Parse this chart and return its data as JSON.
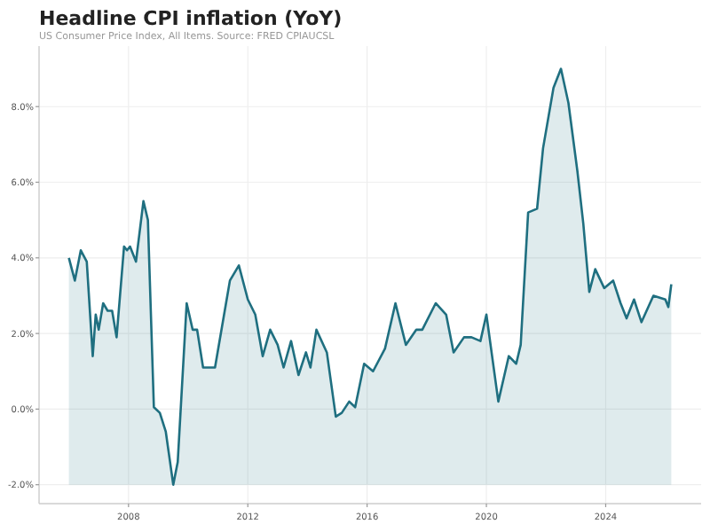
{
  "chart_data": {
    "type": "line",
    "title": "Headline CPI inflation (YoY)",
    "subtitle": "US Consumer Price Index, All Items. Source: FRED CPIAUCSL",
    "x": [
      2006.0,
      2006.2,
      2006.4,
      2006.6,
      2006.8,
      2006.9,
      2007.0,
      2007.15,
      2007.3,
      2007.45,
      2007.6,
      2007.85,
      2007.95,
      2008.05,
      2008.25,
      2008.5,
      2008.65,
      2008.85,
      2009.05,
      2009.25,
      2009.5,
      2009.65,
      2009.95,
      2010.15,
      2010.3,
      2010.5,
      2010.75,
      2010.9,
      2011.4,
      2011.7,
      2012.0,
      2012.25,
      2012.5,
      2012.75,
      2013.0,
      2013.2,
      2013.45,
      2013.7,
      2013.95,
      2014.1,
      2014.3,
      2014.65,
      2014.95,
      2015.15,
      2015.4,
      2015.6,
      2015.9,
      2016.2,
      2016.6,
      2016.95,
      2017.3,
      2017.65,
      2017.85,
      2018.3,
      2018.65,
      2018.9,
      2019.25,
      2019.5,
      2019.8,
      2020.0,
      2020.4,
      2020.75,
      2021.0,
      2021.15,
      2021.4,
      2021.7,
      2021.9,
      2022.25,
      2022.5,
      2022.75,
      2023.05,
      2023.25,
      2023.45,
      2023.65,
      2023.95,
      2024.25,
      2024.5,
      2024.7,
      2024.95,
      2025.2,
      2025.6,
      2026.0,
      2026.1,
      2026.2
    ],
    "series": [
      {
        "color": "#1f6f80",
        "values": [
          4.0,
          3.4,
          4.2,
          3.9,
          1.4,
          2.5,
          2.1,
          2.8,
          2.6,
          2.6,
          1.9,
          4.3,
          4.2,
          4.3,
          3.9,
          5.5,
          5.0,
          0.05,
          -0.1,
          -0.6,
          -2.0,
          -1.4,
          2.8,
          2.1,
          2.1,
          1.1,
          1.1,
          1.1,
          3.4,
          3.8,
          2.9,
          2.5,
          1.4,
          2.1,
          1.7,
          1.1,
          1.8,
          0.9,
          1.5,
          1.1,
          2.1,
          1.5,
          -0.2,
          -0.1,
          0.2,
          0.05,
          1.2,
          1.0,
          1.6,
          2.8,
          1.7,
          2.1,
          2.1,
          2.8,
          2.5,
          1.5,
          1.9,
          1.9,
          1.8,
          2.5,
          0.2,
          1.4,
          1.2,
          1.7,
          5.2,
          5.3,
          6.9,
          8.5,
          9.0,
          8.1,
          6.3,
          4.9,
          3.1,
          3.7,
          3.2,
          3.4,
          2.8,
          2.4,
          2.9,
          2.3,
          3.0,
          2.9,
          2.7,
          3.3
        ],
        "lower": [
          -2,
          -2,
          -2,
          -2,
          -2,
          -2,
          -2,
          -2,
          -2,
          -2,
          -2,
          -2,
          -2,
          -2,
          -2,
          -2,
          -2,
          -2,
          -2,
          -2,
          -2,
          -2,
          -2,
          -2,
          -2,
          -2,
          -2,
          -2,
          -2,
          -2,
          -2,
          -2,
          -2,
          -2,
          -2,
          -2,
          -2,
          -2,
          -2,
          -2,
          -2,
          -2,
          -2,
          -2,
          -2,
          -2,
          -2,
          -2,
          -2,
          -2,
          -2,
          -2,
          -2,
          -2,
          -2,
          -2,
          -2,
          -2,
          -2,
          -2,
          -2,
          -2,
          -2,
          -2,
          -2,
          -2,
          -2,
          -2,
          -2,
          -2,
          -2,
          -2,
          -2,
          -2,
          -2,
          -2,
          -2,
          -2,
          -2,
          -2,
          -2,
          -2,
          -2,
          -2
        ],
        "upper": [
          4.0,
          3.4,
          4.2,
          3.9,
          1.4,
          2.5,
          2.1,
          2.8,
          2.6,
          2.6,
          1.9,
          4.3,
          4.2,
          4.3,
          3.9,
          5.5,
          5.0,
          0.05,
          -0.1,
          -0.6,
          -2.0,
          -1.4,
          2.8,
          2.1,
          2.1,
          1.1,
          1.1,
          1.1,
          3.4,
          3.8,
          2.9,
          2.5,
          1.4,
          2.1,
          1.7,
          1.1,
          1.8,
          0.9,
          1.5,
          1.1,
          2.1,
          1.5,
          -0.2,
          -0.1,
          0.2,
          0.05,
          1.2,
          1.0,
          1.6,
          2.8,
          1.7,
          2.1,
          2.1,
          2.8,
          2.5,
          1.5,
          1.9,
          1.9,
          1.8,
          2.5,
          0.2,
          1.4,
          1.2,
          1.7,
          5.2,
          5.3,
          6.9,
          8.5,
          9.0,
          8.1,
          6.3,
          4.9,
          3.1,
          3.7,
          3.2,
          3.4,
          2.8,
          2.4,
          2.9,
          2.3,
          3.0,
          2.9,
          2.7,
          3.3
        ]
      }
    ],
    "xlim": [
      2005,
      2027.2
    ],
    "xticks": [
      2008,
      2012,
      2016,
      2020,
      2024
    ],
    "ylim": [
      -2.5,
      9.6
    ],
    "yticks": [
      {
        "value": -2,
        "label": "-2.0%"
      },
      {
        "value": 0,
        "label": "0.0%"
      },
      {
        "value": 2,
        "label": "2.0%"
      },
      {
        "value": 4,
        "label": "4.0%"
      },
      {
        "value": 6,
        "label": "6.0%"
      },
      {
        "value": 8,
        "label": "8.0%"
      }
    ],
    "grid": true
  }
}
